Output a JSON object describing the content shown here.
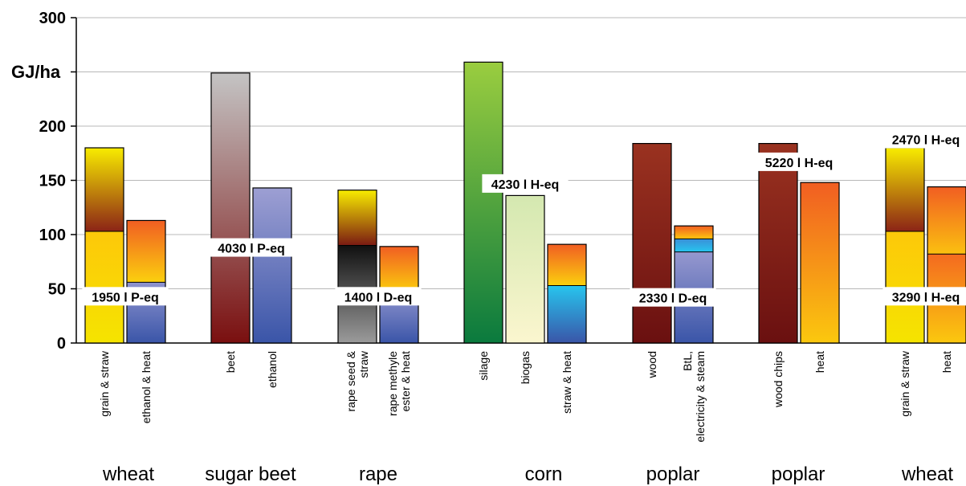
{
  "chart_data": {
    "type": "bar",
    "ylabel": "GJ/ha",
    "ylim": [
      0,
      300
    ],
    "yticks": [
      0,
      50,
      100,
      150,
      200,
      300
    ],
    "grid": "horizontal",
    "groups": [
      {
        "name": "wheat",
        "bars": [
          {
            "label": "grain & straw",
            "total": 180,
            "segments": [
              {
                "value": 103,
                "colors": [
                  "#f5e400",
                  "#fdc80a"
                ]
              },
              {
                "value": 77,
                "colors": [
                  "#8b2316",
                  "#f8ec00"
                ]
              }
            ]
          },
          {
            "label": "ethanol & heat",
            "total": 113,
            "segments": [
              {
                "value": 56,
                "colors": [
                  "#3a55a8",
                  "#8f94cf"
                ]
              },
              {
                "value": 57,
                "colors": [
                  "#fbd00e",
                  "#f15e22"
                ]
              }
            ]
          }
        ]
      },
      {
        "name": "sugar beet",
        "bars": [
          {
            "label": "beet",
            "total": 249,
            "segments": [
              {
                "value": 249,
                "colors": [
                  "#7a0f0f",
                  "#c4c4c4"
                ]
              }
            ]
          },
          {
            "label": "ethanol",
            "total": 143,
            "segments": [
              {
                "value": 143,
                "colors": [
                  "#3a55a8",
                  "#9d9fd3"
                ]
              }
            ]
          }
        ]
      },
      {
        "name": "rape",
        "bars": [
          {
            "label": "rape seed & straw",
            "total": 141,
            "segments": [
              {
                "value": 90,
                "colors": [
                  "#9b9b9b",
                  "#101010"
                ]
              },
              {
                "value": 51,
                "colors": [
                  "#7a1a12",
                  "#f8ec00"
                ]
              }
            ]
          },
          {
            "label": "rape methyle ester & heat",
            "total": 89,
            "segments": [
              {
                "value": 49,
                "colors": [
                  "#3a55a8",
                  "#9396cf"
                ]
              },
              {
                "value": 40,
                "colors": [
                  "#fbc80e",
                  "#f15e22"
                ]
              }
            ]
          }
        ]
      },
      {
        "name": "corn",
        "bars": [
          {
            "label": "silage",
            "total": 259,
            "segments": [
              {
                "value": 259,
                "colors": [
                  "#0a7a3e",
                  "#9acd3f"
                ]
              }
            ]
          },
          {
            "label": "biogas",
            "total": 136,
            "segments": [
              {
                "value": 136,
                "colors": [
                  "#fbf6cf",
                  "#d4e8b0"
                ]
              }
            ]
          },
          {
            "label": "straw & heat",
            "total": 91,
            "segments": [
              {
                "value": 53,
                "colors": [
                  "#3a55a8",
                  "#27c5ee"
                ]
              },
              {
                "value": 38,
                "colors": [
                  "#fbd00e",
                  "#f15e22"
                ]
              }
            ]
          }
        ]
      },
      {
        "name": "poplar",
        "bars": [
          {
            "label": "wood",
            "total": 184,
            "segments": [
              {
                "value": 184,
                "colors": [
                  "#6a1010",
                  "#9a3220"
                ]
              }
            ]
          },
          {
            "label": "BtL, electricity & steam",
            "total": 108,
            "segments": [
              {
                "value": 84,
                "colors": [
                  "#3a55a8",
                  "#9698cf"
                ]
              },
              {
                "value": 12,
                "colors": [
                  "#27c5ee",
                  "#3a8fd8"
                ]
              },
              {
                "value": 12,
                "colors": [
                  "#fbc80e",
                  "#f15e22"
                ]
              }
            ]
          }
        ]
      },
      {
        "name": "poplar",
        "bars": [
          {
            "label": "wood chips",
            "total": 184,
            "segments": [
              {
                "value": 184,
                "colors": [
                  "#6a1010",
                  "#9a3220"
                ]
              }
            ]
          },
          {
            "label": "heat",
            "total": 148,
            "segments": [
              {
                "value": 148,
                "colors": [
                  "#fbc80e",
                  "#f15e22"
                ]
              }
            ]
          }
        ]
      },
      {
        "name": "wheat",
        "bars": [
          {
            "label": "grain & straw",
            "total": 180,
            "segments": [
              {
                "value": 103,
                "colors": [
                  "#f5e400",
                  "#fdc80a"
                ]
              },
              {
                "value": 77,
                "colors": [
                  "#8b2316",
                  "#f8ec00"
                ]
              }
            ]
          },
          {
            "label": "heat",
            "total": 144,
            "segments": [
              {
                "value": 82,
                "colors": [
                  "#fbc80e",
                  "#f46a20"
                ]
              },
              {
                "value": 62,
                "colors": [
                  "#fbc010",
                  "#f15e22"
                ]
              }
            ]
          }
        ]
      }
    ],
    "annotations": [
      {
        "text": "1950 l P-eq",
        "group": 0,
        "value": 42
      },
      {
        "text": "4030 l P-eq",
        "group": 1,
        "value": 87
      },
      {
        "text": "1400 l D-eq",
        "group": 2,
        "value": 42
      },
      {
        "text": "4230 l H-eq",
        "group": 3,
        "value": 146
      },
      {
        "text": "2330 l D-eq",
        "group": 4,
        "value": 41
      },
      {
        "text": "5220 l H-eq",
        "group": 5,
        "value": 166
      },
      {
        "text": "3290 l H-eq",
        "group": 6,
        "value": 42
      },
      {
        "text": "2470 l H-eq",
        "group": 6,
        "value": 187
      }
    ]
  }
}
